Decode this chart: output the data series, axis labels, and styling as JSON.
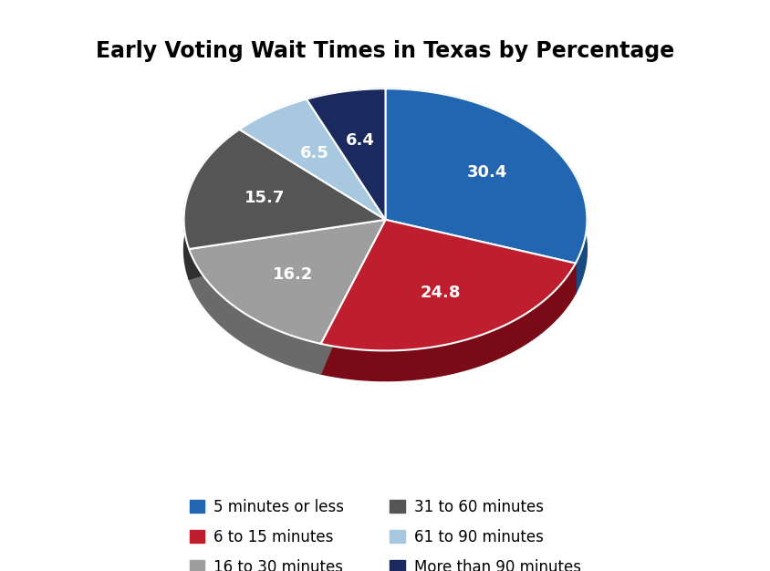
{
  "title": "Early Voting Wait Times in Texas by Percentage",
  "slices": [
    30.4,
    24.8,
    16.2,
    15.7,
    6.5,
    6.4
  ],
  "labels": [
    "5 minutes or less",
    "6 to 15 minutes",
    "16 to 30 minutes",
    "31 to 60 minutes",
    "61 to 90 minutes",
    "More than 90 minutes"
  ],
  "colors": [
    "#2265B0",
    "#BE1E2D",
    "#9E9E9E",
    "#555555",
    "#A8C8E0",
    "#1B2A5E"
  ],
  "dark_colors": [
    "#174A80",
    "#7A0A15",
    "#6A6A6A",
    "#303030",
    "#6898B0",
    "#0A1530"
  ],
  "startangle": 90,
  "title_fontsize": 17,
  "label_fontsize": 13,
  "legend_fontsize": 12,
  "background_color": "#FFFFFF",
  "depth": 0.15,
  "legend_order": [
    0,
    1,
    2,
    3,
    4,
    5
  ]
}
